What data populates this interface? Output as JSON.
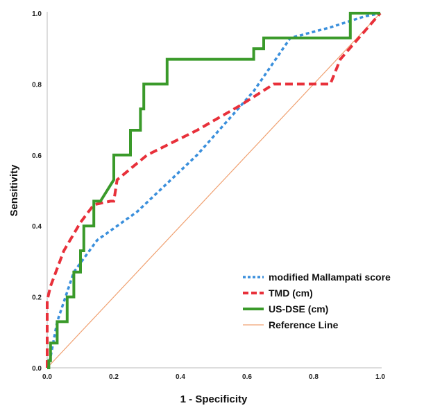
{
  "chart_data": {
    "type": "line",
    "xlabel": "1 - Specificity",
    "ylabel": "Sensitivity",
    "xlim": [
      0,
      1
    ],
    "ylim": [
      0,
      1
    ],
    "x_ticks": [
      "0.0",
      "0.2",
      "0.4",
      "0.6",
      "0.8",
      "1.0"
    ],
    "y_ticks": [
      "0.0",
      "0.2",
      "0.4",
      "0.6",
      "0.8",
      "1.0"
    ],
    "grid": false,
    "legend_position": "bottom-right",
    "series": [
      {
        "name": "modified Mallampati score",
        "color": "#3a8fdc",
        "style": "dotted",
        "x": [
          0,
          0.01,
          0.03,
          0.08,
          0.15,
          0.27,
          0.45,
          0.62,
          0.73,
          0.85,
          0.95,
          1.0
        ],
        "y": [
          0,
          0.03,
          0.13,
          0.27,
          0.36,
          0.44,
          0.6,
          0.78,
          0.93,
          0.96,
          0.99,
          1.0
        ]
      },
      {
        "name": "TMD (cm)",
        "color": "#e8303a",
        "style": "dashed",
        "x": [
          0,
          0,
          0.01,
          0.05,
          0.1,
          0.14,
          0.19,
          0.2,
          0.21,
          0.3,
          0.45,
          0.58,
          0.68,
          0.85,
          0.88,
          1.0
        ],
        "y": [
          0,
          0.19,
          0.23,
          0.33,
          0.41,
          0.46,
          0.47,
          0.47,
          0.53,
          0.6,
          0.67,
          0.74,
          0.8,
          0.8,
          0.87,
          1.0
        ],
        "steps": [
          [
            0.14,
            0.47
          ],
          [
            0.2,
            0.47
          ],
          [
            0.2,
            0.47
          ]
        ]
      },
      {
        "name": "US-DSE (cm)",
        "color": "#3a9a2a",
        "style": "solid",
        "x": [
          0,
          0.005,
          0.005,
          0.01,
          0.01,
          0.02,
          0.02,
          0.03,
          0.03,
          0.04,
          0.04,
          0.06,
          0.06,
          0.08,
          0.08,
          0.1,
          0.1,
          0.11,
          0.11,
          0.14,
          0.14,
          0.16,
          0.16,
          0.2,
          0.2,
          0.23,
          0.23,
          0.25,
          0.25,
          0.28,
          0.28,
          0.29,
          0.29,
          0.36,
          0.36,
          0.62,
          0.62,
          0.65,
          0.65,
          0.9,
          0.9,
          0.91,
          0.91,
          1.0
        ],
        "y": [
          0,
          0,
          0.02,
          0.02,
          0.07,
          0.07,
          0.07,
          0.07,
          0.13,
          0.13,
          0.13,
          0.13,
          0.2,
          0.2,
          0.27,
          0.27,
          0.33,
          0.33,
          0.4,
          0.4,
          0.47,
          0.47,
          0.47,
          0.53,
          0.6,
          0.6,
          0.6,
          0.6,
          0.67,
          0.67,
          0.73,
          0.73,
          0.8,
          0.8,
          0.87,
          0.87,
          0.9,
          0.9,
          0.93,
          0.93,
          0.93,
          0.93,
          1.0,
          1.0
        ]
      },
      {
        "name": "Reference Line",
        "color": "#f0a070",
        "style": "thin",
        "x": [
          0,
          1
        ],
        "y": [
          0,
          1
        ]
      }
    ]
  }
}
